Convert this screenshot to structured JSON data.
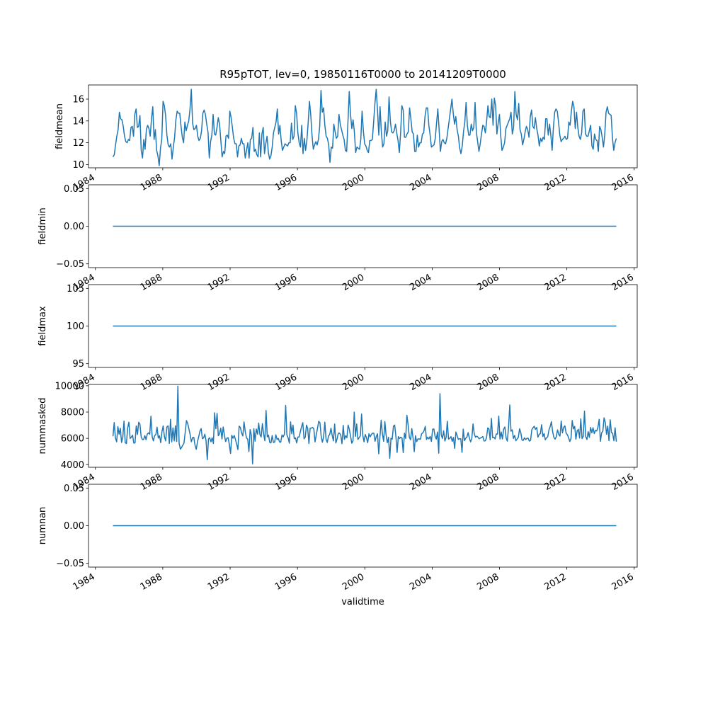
{
  "chart_data": {
    "type": "line",
    "title": "R95pTOT, lev=0, 19850116T0000 to 20141209T0000",
    "xlabel": "validtime",
    "x_range": [
      "1985-01-16",
      "2014-12-09"
    ],
    "x_ticks": [
      "1984",
      "1988",
      "1992",
      "1996",
      "2000",
      "2004",
      "2008",
      "2012",
      "2016"
    ],
    "line_color": "#1f77b4",
    "grid": false,
    "panels": [
      {
        "ylabel": "fieldmean",
        "ylim": [
          9.7,
          17.3
        ],
        "yticks": [
          10,
          12,
          14,
          16
        ],
        "ytick_labels": [
          "10",
          "12",
          "14",
          "16"
        ],
        "values": [
          10.7,
          10.9,
          11.8,
          12.6,
          13.2,
          14.8,
          14.2,
          14.1,
          13.5,
          12.6,
          12.1,
          12.0,
          12.3,
          12.2,
          13.4,
          13.5,
          12.6,
          14.6,
          15.1,
          13.4,
          13.5,
          14.5,
          11.3,
          10.6,
          12.3,
          11.4,
          13.2,
          13.6,
          13.3,
          12.6,
          14.2,
          15.3,
          12.3,
          13.2,
          11.3,
          10.8,
          9.9,
          11.5,
          12.3,
          15.8,
          15.4,
          14.5,
          12.7,
          11.8,
          11.6,
          11.9,
          10.5,
          11.6,
          12.5,
          14.1,
          14.9,
          14.7,
          14.7,
          13.5,
          12.5,
          12.0,
          13.9,
          13.1,
          13.6,
          14.0,
          15.1,
          16.9,
          13.8,
          13.2,
          13.3,
          13.6,
          12.6,
          12.2,
          12.4,
          13.1,
          14.7,
          15.0,
          14.6,
          13.7,
          13.0,
          10.6,
          12.1,
          12.7,
          14.6,
          12.8,
          12.7,
          13.4,
          14.3,
          13.7,
          12.2,
          10.7,
          11.2,
          11.0,
          12.6,
          12.7,
          12.4,
          14.9,
          14.3,
          13.4,
          12.4,
          11.9,
          11.9,
          10.7,
          11.7,
          11.8,
          12.4,
          11.9,
          11.9,
          10.6,
          11.3,
          12.0,
          10.6,
          12.3,
          12.4,
          13.4,
          11.2,
          11.4,
          10.9,
          10.7,
          12.9,
          10.7,
          12.8,
          13.4,
          11.0,
          11.9,
          12.6,
          11.1,
          10.5,
          10.8,
          11.6,
          12.9,
          13.4,
          13.9,
          15.1,
          12.8,
          13.6,
          12.2,
          11.3,
          11.6,
          11.9,
          11.8,
          11.7,
          12.0,
          12.0,
          13.8,
          12.3,
          12.6,
          15.4,
          14.7,
          12.9,
          12.0,
          11.6,
          13.6,
          11.0,
          12.4,
          11.3,
          12.2,
          13.8,
          15.8,
          14.6,
          12.7,
          11.4,
          11.8,
          12.1,
          11.8,
          12.3,
          13.5,
          16.8,
          14.8,
          15.2,
          13.6,
          12.6,
          12.4,
          11.8,
          10.2,
          11.6,
          11.5,
          13.7,
          13.0,
          12.4,
          12.6,
          14.6,
          13.7,
          13.2,
          12.7,
          12.3,
          11.3,
          11.2,
          13.9,
          16.7,
          14.6,
          13.3,
          14.1,
          13.0,
          11.1,
          11.6,
          11.5,
          11.4,
          12.3,
          14.9,
          13.1,
          11.9,
          11.7,
          11.3,
          11.1,
          12.2,
          12.2,
          12.3,
          13.9,
          15.6,
          16.9,
          15.0,
          12.7,
          15.3,
          13.0,
          11.6,
          11.9,
          13.9,
          12.6,
          13.1,
          16.2,
          14.0,
          13.0,
          12.9,
          13.1,
          13.7,
          12.9,
          12.2,
          11.1,
          12.9,
          15.4,
          15.0,
          12.5,
          12.5,
          12.8,
          13.0,
          15.2,
          14.2,
          13.0,
          12.8,
          11.2,
          11.2,
          12.7,
          11.6,
          12.0,
          12.0,
          12.8,
          12.9,
          14.4,
          15.2,
          15.2,
          13.6,
          12.7,
          11.6,
          11.7,
          11.8,
          12.4,
          13.8,
          15.1,
          13.2,
          11.2,
          12.1,
          12.3,
          12.0,
          11.9,
          12.4,
          13.3,
          14.2,
          15.1,
          16.0,
          14.7,
          13.7,
          14.4,
          13.2,
          12.6,
          11.5,
          11.0,
          11.7,
          13.0,
          13.9,
          15.7,
          13.6,
          12.7,
          12.7,
          13.7,
          13.1,
          13.4,
          15.7,
          13.0,
          12.1,
          11.2,
          11.9,
          12.8,
          13.6,
          13.5,
          12.9,
          14.0,
          15.4,
          14.4,
          14.3,
          16.0,
          13.6,
          16.1,
          15.4,
          12.8,
          13.8,
          14.6,
          12.6,
          11.3,
          11.6,
          12.0,
          13.3,
          13.6,
          13.9,
          14.2,
          14.8,
          12.8,
          13.4,
          16.7,
          14.6,
          14.1,
          15.6,
          13.2,
          12.8,
          11.8,
          12.3,
          13.0,
          13.5,
          13.2,
          12.5,
          14.4,
          15.0,
          13.5,
          13.3,
          14.3,
          13.3,
          12.7,
          11.7,
          12.4,
          12.1,
          12.5,
          12.3,
          14.2,
          14.2,
          12.7,
          13.7,
          12.7,
          11.3,
          13.4,
          14.8,
          15.1,
          14.9,
          13.9,
          12.7,
          12.1,
          12.3,
          12.4,
          12.6,
          12.3,
          12.4,
          13.9,
          13.6,
          14.9,
          15.8,
          15.3,
          13.3,
          14.8,
          13.4,
          12.6,
          12.3,
          12.9,
          14.9,
          15.1,
          12.8,
          12.6,
          12.6,
          13.1,
          13.6,
          11.7,
          11.4,
          12.8,
          12.3,
          12.2,
          11.2,
          13.5,
          13.2,
          12.5,
          11.6,
          12.8,
          14.8,
          15.3,
          14.7,
          14.6,
          14.5,
          12.4,
          11.3,
          12.0,
          12.4
        ]
      },
      {
        "ylabel": "fieldmin",
        "ylim": [
          -0.055,
          0.055
        ],
        "yticks": [
          -0.05,
          0,
          0.05
        ],
        "ytick_labels": [
          "−0.05",
          "0.00",
          "0.05"
        ],
        "constant": 0
      },
      {
        "ylabel": "fieldmax",
        "ylim": [
          94.5,
          105.5
        ],
        "yticks": [
          95,
          100,
          105
        ],
        "ytick_labels": [
          "95",
          "100",
          "105"
        ],
        "constant": 100
      },
      {
        "ylabel": "nummasked",
        "ylim": [
          3800,
          10100
        ],
        "yticks": [
          4000,
          6000,
          8000,
          10000
        ],
        "ytick_labels": [
          "4000",
          "6000",
          "8000",
          "10000"
        ],
        "values": [
          6150,
          7204,
          6030,
          5735,
          6890,
          6310,
          6770,
          5688,
          6086,
          7315,
          5673,
          5605,
          6791,
          7230,
          5990,
          6091,
          6240,
          5646,
          5653,
          6945,
          6300,
          7226,
          7088,
          6119,
          5913,
          5903,
          6211,
          5900,
          6326,
          6415,
          6316,
          7685,
          6130,
          5807,
          6196,
          6291,
          6850,
          6021,
          6196,
          5671,
          6510,
          6946,
          6140,
          5802,
          6868,
          6951,
          5608,
          7450,
          5730,
          6790,
          5805,
          6958,
          5762,
          9970,
          5630,
          5178,
          5307,
          5483,
          5639,
          6485,
          7352,
          7137,
          6720,
          6289,
          5739,
          6062,
          6072,
          5468,
          5163,
          5740,
          6117,
          6540,
          6743,
          5973,
          6034,
          6318,
          5829,
          4376,
          5967,
          6046,
          5736,
          6047,
          5612,
          7947,
          6730,
          7896,
          6193,
          6350,
          6776,
          5955,
          6864,
          6241,
          5751,
          6014,
          6054,
          5543,
          4856,
          6233,
          6003,
          6216,
          5918,
          5561,
          5146,
          6932,
          6828,
          6424,
          6175,
          7254,
          6519,
          6035,
          5937,
          4991,
          6669,
          6235,
          4059,
          6730,
          5786,
          6713,
          6311,
          7160,
          6276,
          6106,
          7115,
          6347,
          5817,
          8120,
          6109,
          6250,
          5699,
          5653,
          6214,
          5683,
          5720,
          6270,
          5917,
          6001,
          5730,
          5707,
          6255,
          6110,
          6320,
          8505,
          6260,
          6044,
          5630,
          7250,
          6346,
          7010,
          5976,
          6040,
          5655,
          6102,
          6102,
          6510,
          6900,
          7193,
          5961,
          6094,
          7009,
          6750,
          5602,
          6770,
          6780,
          6830,
          6720,
          5732,
          6270,
          6760,
          7300,
          7182,
          6170,
          5707,
          6117,
          7230,
          5924,
          5689,
          6185,
          6294,
          6770,
          6224,
          5809,
          7090,
          5650,
          5963,
          6390,
          6400,
          6236,
          5590,
          6990,
          5921,
          6200,
          6049,
          7009,
          6680,
          6165,
          5629,
          5813,
          8000,
          6153,
          7092,
          5911,
          6049,
          6200,
          7850,
          6211,
          5738,
          6300,
          6040,
          5668,
          6350,
          6115,
          6300,
          6400,
          6390,
          5779,
          6140,
          6350,
          4825,
          6150,
          7380,
          6340,
          5776,
          7280,
          6260,
          5669,
          6080,
          4480,
          6010,
          5937,
          6920,
          7018,
          6174,
          4928,
          6126,
          5987,
          6090,
          6036,
          4915,
          6390,
          5992,
          7750,
          7020,
          6081,
          5890,
          6750,
          6050,
          4986,
          6205,
          5750,
          5960,
          5961,
          5925,
          6345,
          6420,
          6580,
          6910,
          5911,
          6090,
          5957,
          6146,
          5767,
          6690,
          6720,
          6160,
          5940,
          6480,
          4870,
          9400,
          6280,
          5989,
          6580,
          5800,
          6064,
          7300,
          5944,
          5997,
          6130,
          5770,
          6070,
          5240,
          6480,
          6220,
          5922,
          5968,
          5967,
          4935,
          6700,
          5826,
          6006,
          6100,
          6440,
          6039,
          5730,
          5989,
          7097,
          6340,
          6090,
          6165,
          6094,
          5965,
          6025,
          6067,
          6140,
          5802,
          5811,
          6040,
          6790,
          6720,
          5890,
          7520,
          6050,
          6090,
          5955,
          6340,
          6320,
          7690,
          5950,
          6480,
          5950,
          6690,
          6870,
          6030,
          5788,
          6860,
          8545,
          6540,
          6650,
          5990,
          6220,
          5820,
          5950,
          6079,
          6730,
          6440,
          5866,
          5845,
          6042,
          5904,
          6000,
          6010,
          5790,
          5850,
          6660,
          6810,
          6920,
          6690,
          6830,
          6090,
          6310,
          6360,
          7040,
          6140,
          6370,
          5893,
          6040,
          6125,
          6640,
          6900,
          7270,
          6510,
          6080,
          5940,
          6130,
          6640,
          6300,
          6170,
          7315,
          6420,
          6830,
          6950,
          6410,
          6280,
          6060,
          5760,
          5990,
          7360,
          6720,
          6910,
          5940,
          6560,
          6690,
          6030,
          7480,
          5980,
          6150,
          8080,
          6140,
          5910,
          6510,
          6070,
          6830,
          6420,
          6810,
          6360,
          6610,
          6560,
          6840,
          7450,
          5780,
          6420,
          6540,
          7560,
          7210,
          6310,
          6930,
          5820,
          7410,
          6450,
          6380,
          5810,
          6800,
          5750
        ]
      },
      {
        "ylabel": "numnan",
        "ylim": [
          -0.055,
          0.055
        ],
        "yticks": [
          -0.05,
          0,
          0.05
        ],
        "ytick_labels": [
          "−0.05",
          "0.00",
          "0.05"
        ],
        "constant": 0
      }
    ]
  }
}
